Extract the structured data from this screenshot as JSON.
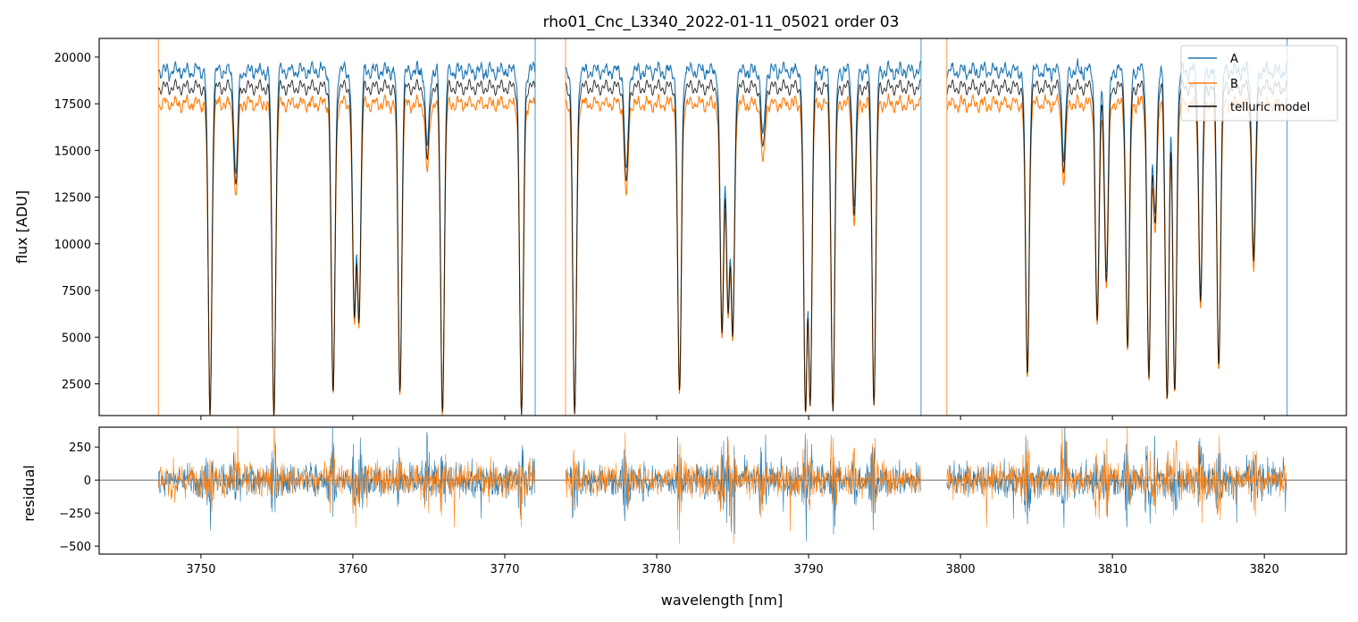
{
  "chart_data": [
    {
      "type": "line",
      "title": "rho01_Cnc_L3340_2022-01-11_05021  order 03",
      "xlabel": "",
      "ylabel": "flux [ADU]",
      "xlim": [
        3743.3,
        3825.4
      ],
      "ylim": [
        800,
        21000
      ],
      "xticks": [
        3750,
        3760,
        3770,
        3780,
        3790,
        3800,
        3810,
        3820
      ],
      "yticks": [
        2500,
        5000,
        7500,
        10000,
        12500,
        15000,
        17500,
        20000
      ],
      "ytick_labels": [
        "2500",
        "5000",
        "7500",
        "10000",
        "12500",
        "15000",
        "17500",
        "20000"
      ],
      "legend_position": "top-right",
      "series": [
        {
          "name": "A",
          "color": "#1f77b4",
          "continuum": 19700
        },
        {
          "name": "B",
          "color": "#ff7f0e",
          "continuum": 17900
        },
        {
          "name": "telluric model",
          "color": "#000000"
        }
      ],
      "segments": [
        [
          3747.2,
          3772.0
        ],
        [
          3774.0,
          3797.4
        ],
        [
          3799.1,
          3821.5
        ]
      ],
      "absorption_lines": [
        {
          "x": 3750.6,
          "min": 900
        },
        {
          "x": 3752.3,
          "min": 14000
        },
        {
          "x": 3754.8,
          "min": 800
        },
        {
          "x": 3758.7,
          "min": 2100
        },
        {
          "x": 3760.1,
          "min": 6600
        },
        {
          "x": 3760.4,
          "min": 6500
        },
        {
          "x": 3763.1,
          "min": 2200
        },
        {
          "x": 3764.9,
          "min": 15500
        },
        {
          "x": 3765.9,
          "min": 1000
        },
        {
          "x": 3771.1,
          "min": 900
        },
        {
          "x": 3774.6,
          "min": 900
        },
        {
          "x": 3778.0,
          "min": 14000
        },
        {
          "x": 3781.5,
          "min": 2200
        },
        {
          "x": 3784.3,
          "min": 5500
        },
        {
          "x": 3784.7,
          "min": 7000
        },
        {
          "x": 3785.0,
          "min": 5500
        },
        {
          "x": 3787.0,
          "min": 16000
        },
        {
          "x": 3789.8,
          "min": 1000
        },
        {
          "x": 3790.1,
          "min": 1500
        },
        {
          "x": 3791.6,
          "min": 1100
        },
        {
          "x": 3793.0,
          "min": 12500
        },
        {
          "x": 3794.3,
          "min": 1500
        },
        {
          "x": 3804.4,
          "min": 3200
        },
        {
          "x": 3806.8,
          "min": 15000
        },
        {
          "x": 3809.0,
          "min": 6200
        },
        {
          "x": 3809.6,
          "min": 8500
        },
        {
          "x": 3811.0,
          "min": 4800
        },
        {
          "x": 3812.4,
          "min": 3000
        },
        {
          "x": 3812.8,
          "min": 12000
        },
        {
          "x": 3813.6,
          "min": 1800
        },
        {
          "x": 3814.1,
          "min": 2200
        },
        {
          "x": 3815.8,
          "min": 7500
        },
        {
          "x": 3817.0,
          "min": 3700
        },
        {
          "x": 3819.3,
          "min": 9700
        }
      ]
    },
    {
      "type": "line",
      "title": "",
      "xlabel": "wavelength [nm]",
      "ylabel": "residual",
      "xlim": [
        3743.3,
        3825.4
      ],
      "ylim": [
        -560,
        400
      ],
      "xticks": [
        3750,
        3760,
        3770,
        3780,
        3790,
        3800,
        3810,
        3820
      ],
      "xtick_labels": [
        "3750",
        "3760",
        "3770",
        "3780",
        "3790",
        "3800",
        "3810",
        "3820"
      ],
      "yticks": [
        -500,
        -250,
        0,
        250
      ],
      "ytick_labels": [
        "−500",
        "−250",
        "0",
        "250"
      ],
      "reference_line": 0,
      "series": [
        {
          "name": "A",
          "color": "#1f77b4",
          "noise_amplitude": 90
        },
        {
          "name": "B",
          "color": "#ff7f0e",
          "noise_amplitude": 90
        }
      ]
    }
  ]
}
